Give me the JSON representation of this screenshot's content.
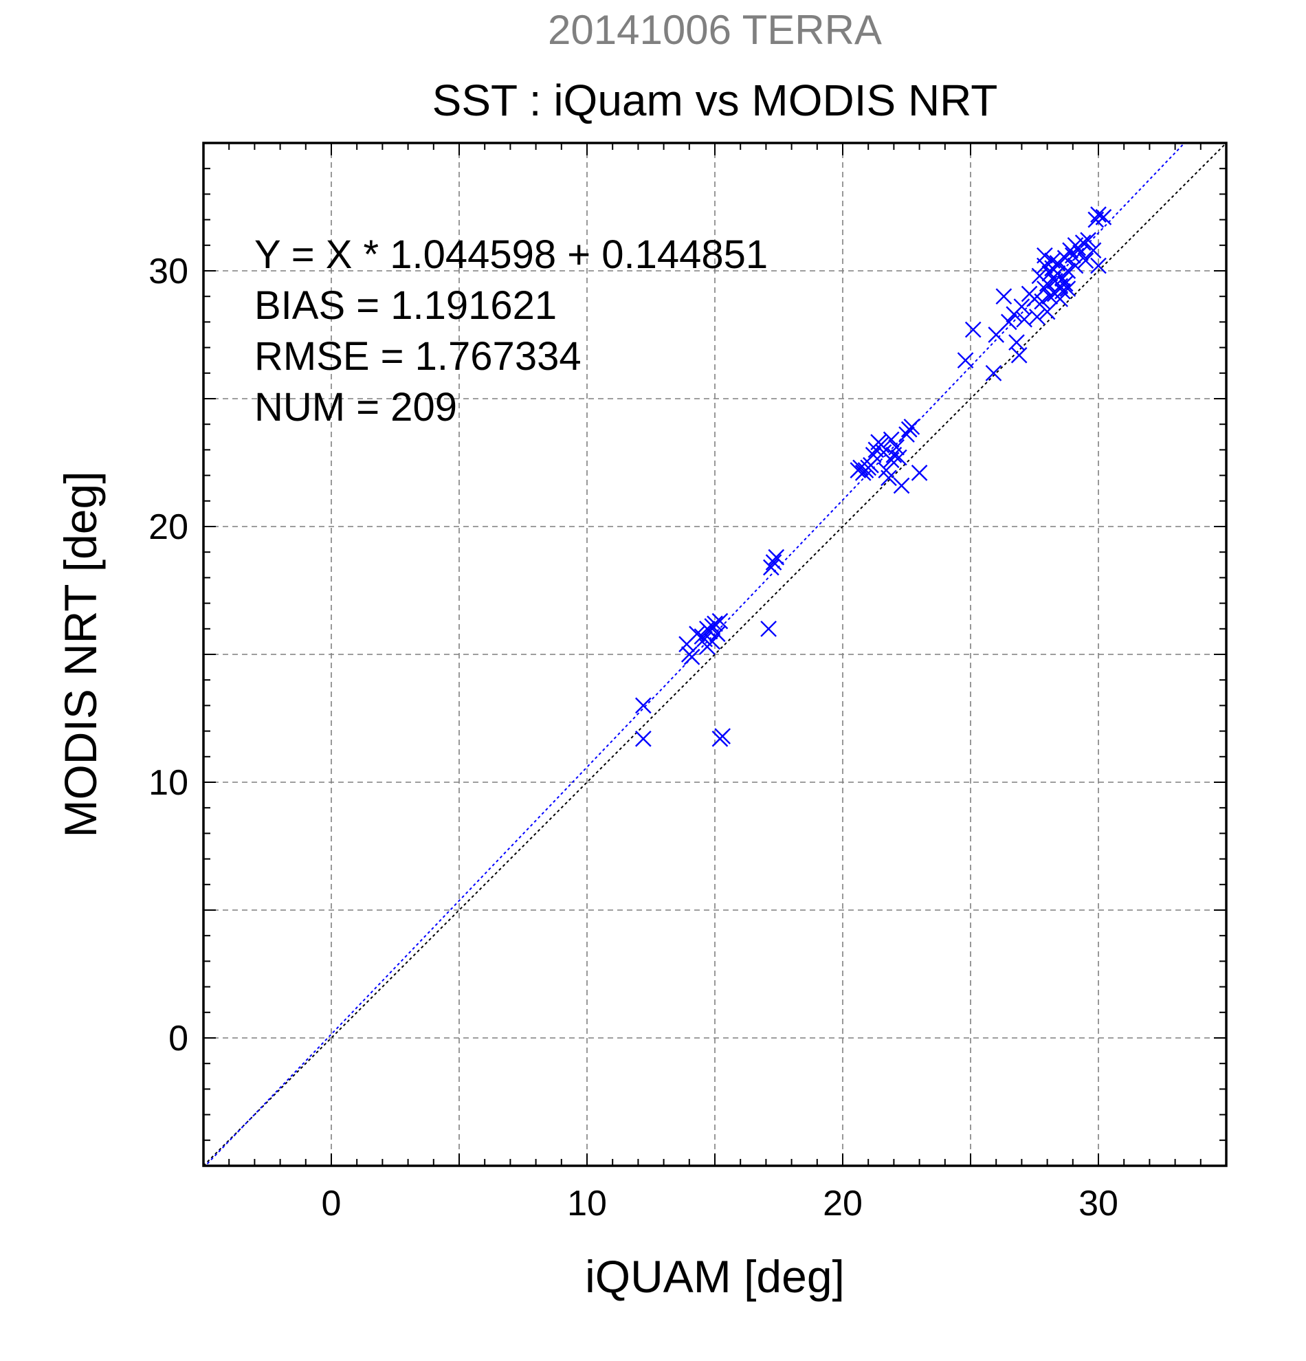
{
  "chart_data": {
    "type": "scatter",
    "supertitle": "20141006 TERRA",
    "title": "SST : iQuam vs MODIS NRT",
    "xlabel": "iQUAM [deg]",
    "ylabel": "MODIS NRT [deg]",
    "xlim": [
      -5,
      35
    ],
    "ylim": [
      -5,
      35
    ],
    "xticks": [
      0,
      10,
      20,
      30
    ],
    "yticks": [
      0,
      10,
      20,
      30
    ],
    "grid": true,
    "colors": {
      "points": "#0000ff",
      "fit_line": "#0000ff",
      "identity_line": "#000000",
      "supertitle": "#808080"
    },
    "stats": [
      "Y = X * 1.044598 + 0.144851",
      "BIAS = 1.191621",
      "RMSE = 1.767334",
      "NUM = 209"
    ],
    "fit": {
      "slope": 1.044598,
      "intercept": 0.144851
    },
    "series": [
      {
        "marker": "x",
        "points": [
          [
            12.2,
            13.0
          ],
          [
            12.2,
            11.7
          ],
          [
            13.9,
            15.4
          ],
          [
            14.0,
            15.0
          ],
          [
            14.1,
            14.9
          ],
          [
            14.3,
            15.8
          ],
          [
            14.5,
            15.7
          ],
          [
            14.6,
            15.6
          ],
          [
            14.7,
            16.0
          ],
          [
            14.8,
            15.9
          ],
          [
            14.9,
            16.1
          ],
          [
            15.0,
            16.2
          ],
          [
            15.1,
            15.8
          ],
          [
            15.2,
            16.3
          ],
          [
            14.7,
            15.3
          ],
          [
            14.9,
            15.5
          ],
          [
            15.2,
            11.7
          ],
          [
            15.3,
            11.8
          ],
          [
            17.1,
            16.0
          ],
          [
            17.2,
            18.4
          ],
          [
            17.3,
            18.6
          ],
          [
            17.4,
            18.8
          ],
          [
            20.6,
            22.2
          ],
          [
            20.7,
            22.3
          ],
          [
            20.8,
            22.1
          ],
          [
            20.9,
            22.2
          ],
          [
            21.0,
            22.3
          ],
          [
            21.1,
            22.4
          ],
          [
            21.2,
            22.8
          ],
          [
            21.3,
            23.0
          ],
          [
            21.5,
            23.2
          ],
          [
            21.6,
            22.9
          ],
          [
            21.7,
            22.2
          ],
          [
            21.8,
            21.9
          ],
          [
            21.9,
            23.4
          ],
          [
            22.0,
            22.8
          ],
          [
            22.1,
            23.1
          ],
          [
            22.2,
            22.7
          ],
          [
            22.3,
            21.6
          ],
          [
            22.5,
            23.6
          ],
          [
            22.6,
            23.8
          ],
          [
            22.7,
            23.9
          ],
          [
            23.0,
            22.1
          ],
          [
            21.4,
            23.3
          ],
          [
            21.9,
            22.6
          ],
          [
            24.8,
            26.5
          ],
          [
            25.1,
            27.7
          ],
          [
            25.9,
            26.0
          ],
          [
            26.0,
            27.5
          ],
          [
            26.3,
            29.0
          ],
          [
            26.5,
            28.0
          ],
          [
            26.7,
            28.3
          ],
          [
            26.8,
            27.2
          ],
          [
            26.9,
            26.7
          ],
          [
            27.0,
            28.6
          ],
          [
            27.1,
            28.1
          ],
          [
            27.3,
            29.1
          ],
          [
            27.5,
            28.9
          ],
          [
            27.6,
            28.2
          ],
          [
            27.8,
            28.8
          ],
          [
            27.9,
            29.3
          ],
          [
            28.0,
            28.4
          ],
          [
            27.7,
            29.8
          ],
          [
            27.9,
            30.2
          ],
          [
            28.0,
            29.5
          ],
          [
            28.1,
            29.9
          ],
          [
            28.2,
            30.1
          ],
          [
            28.3,
            29.6
          ],
          [
            28.4,
            30.3
          ],
          [
            28.5,
            29.4
          ],
          [
            28.6,
            29.7
          ],
          [
            28.7,
            30.5
          ],
          [
            28.8,
            30.0
          ],
          [
            28.9,
            30.8
          ],
          [
            29.0,
            30.6
          ],
          [
            29.1,
            31.0
          ],
          [
            29.2,
            30.9
          ],
          [
            29.3,
            30.7
          ],
          [
            29.4,
            31.1
          ],
          [
            29.5,
            30.4
          ],
          [
            28.1,
            29.0
          ],
          [
            28.3,
            29.1
          ],
          [
            28.5,
            28.9
          ],
          [
            28.6,
            29.2
          ],
          [
            28.8,
            29.3
          ],
          [
            28.4,
            29.9
          ],
          [
            29.9,
            32.0
          ],
          [
            30.0,
            32.2
          ],
          [
            30.2,
            32.1
          ],
          [
            30.0,
            30.2
          ],
          [
            29.6,
            31.2
          ],
          [
            29.8,
            30.8
          ],
          [
            27.9,
            30.6
          ],
          [
            28.2,
            30.4
          ],
          [
            28.7,
            29.5
          ],
          [
            29.1,
            30.2
          ]
        ]
      }
    ]
  }
}
